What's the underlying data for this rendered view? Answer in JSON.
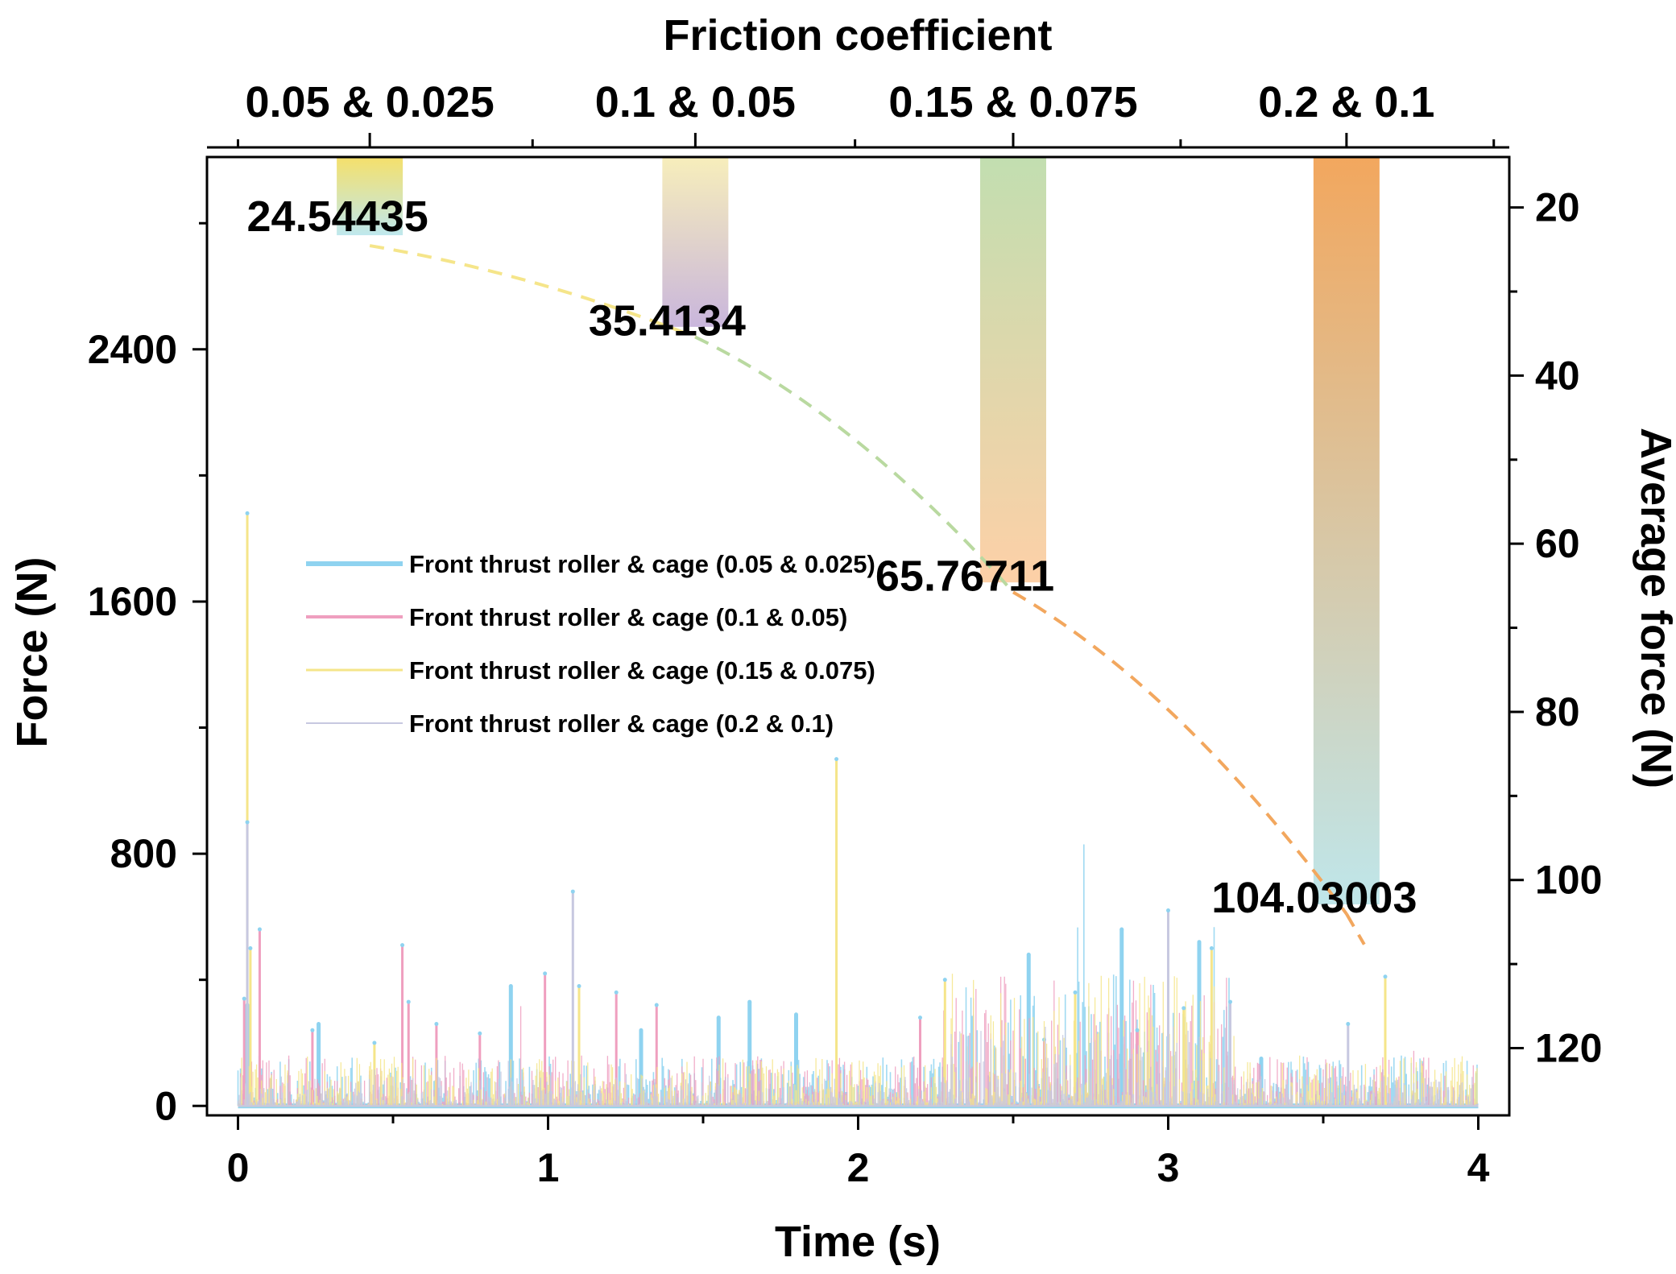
{
  "chart_data": {
    "type": "line",
    "x_axis": {
      "label": "Time (s)",
      "range": [
        -0.1,
        4.1
      ],
      "ticks": [
        "0",
        "1",
        "2",
        "3",
        "4"
      ],
      "tick_values": [
        0,
        1,
        2,
        3,
        4
      ]
    },
    "y_left_axis": {
      "label": "Force (N)",
      "range": [
        -30,
        3010
      ],
      "ticks": [
        "0",
        "800",
        "1600",
        "2400"
      ],
      "tick_values": [
        0,
        800,
        1600,
        2400
      ]
    },
    "y_right_axis": {
      "label": "Average force (N)",
      "range": [
        14,
        128
      ],
      "inverted": true,
      "ticks": [
        "20",
        "40",
        "60",
        "80",
        "100",
        "120"
      ],
      "tick_values": [
        20,
        40,
        60,
        80,
        100,
        120
      ]
    },
    "top_axis": {
      "label": "Friction coefficient",
      "categories": [
        "0.05 & 0.025",
        "0.1 & 0.05",
        "0.15 & 0.075",
        "0.2 & 0.1"
      ],
      "category_times": [
        0.425,
        1.475,
        2.5,
        3.575
      ]
    },
    "legend": {
      "placement": "center-left",
      "entries": [
        {
          "label": "Front thrust roller & cage (0.05 & 0.025)",
          "color": "#8fd3f0",
          "width": 6
        },
        {
          "label": "Front thrust roller & cage (0.1 & 0.05)",
          "color": "#ef9fbf",
          "width": 4
        },
        {
          "label": "Front thrust roller & cage (0.15 & 0.075)",
          "color": "#f5e58a",
          "width": 3
        },
        {
          "label": "Front thrust roller & cage (0.2 & 0.1)",
          "color": "#c7c8e0",
          "width": 2
        }
      ]
    },
    "series": [
      {
        "name": "Front thrust roller & cage (0.05 & 0.025)",
        "color": "#8fd3f0",
        "peaks": [
          [
            0.03,
            320
          ],
          [
            0.26,
            260
          ],
          [
            0.88,
            380
          ],
          [
            1.3,
            240
          ],
          [
            1.55,
            280
          ],
          [
            1.65,
            330
          ],
          [
            1.8,
            290
          ],
          [
            2.55,
            480
          ],
          [
            2.85,
            560
          ],
          [
            3.1,
            520
          ],
          [
            3.3,
            150
          ]
        ]
      },
      {
        "name": "Front thrust roller & cage (0.1 & 0.05)",
        "color": "#ef9fbf",
        "peaks": [
          [
            0.02,
            340
          ],
          [
            0.07,
            560
          ],
          [
            0.24,
            240
          ],
          [
            0.53,
            510
          ],
          [
            0.55,
            330
          ],
          [
            0.64,
            260
          ],
          [
            0.78,
            230
          ],
          [
            0.99,
            420
          ],
          [
            1.22,
            360
          ],
          [
            1.35,
            320
          ],
          [
            2.2,
            280
          ],
          [
            2.6,
            210
          ],
          [
            2.9,
            240
          ]
        ]
      },
      {
        "name": "Front thrust roller & cage (0.15 & 0.075)",
        "color": "#f5e58a",
        "peaks": [
          [
            0.03,
            1880
          ],
          [
            0.04,
            500
          ],
          [
            0.44,
            200
          ],
          [
            1.1,
            380
          ],
          [
            1.93,
            1100
          ],
          [
            2.28,
            400
          ],
          [
            2.7,
            360
          ],
          [
            3.05,
            310
          ],
          [
            3.14,
            500
          ],
          [
            3.7,
            410
          ]
        ]
      },
      {
        "name": "Front thrust roller & cage (0.2 & 0.1)",
        "color": "#c7c8e0",
        "peaks": [
          [
            0.03,
            900
          ],
          [
            1.08,
            680
          ],
          [
            3.0,
            620
          ],
          [
            3.2,
            330
          ],
          [
            3.58,
            260
          ]
        ]
      }
    ],
    "average_force": {
      "points": [
        {
          "x": 0.425,
          "value": 24.54435,
          "label": "24.54435"
        },
        {
          "x": 1.475,
          "value": 35.4134,
          "label": "35.4134"
        },
        {
          "x": 2.5,
          "value": 65.76711,
          "label": "65.76711"
        },
        {
          "x": 3.575,
          "value": 104.03003,
          "label": "104.03003"
        }
      ]
    },
    "bands": [
      {
        "x": 0.425,
        "top_value": 14,
        "bottom_value": 23.3,
        "color_top": "#f5e06b",
        "color_bottom": "#bfe8ee"
      },
      {
        "x": 1.475,
        "top_value": 14,
        "bottom_value": 34.2,
        "color_top": "#f7eebb",
        "color_bottom": "#c9b6dc"
      },
      {
        "x": 2.5,
        "top_value": 14,
        "bottom_value": 64.6,
        "color_top": "#c2deb0",
        "color_bottom": "#fdd0a7"
      },
      {
        "x": 3.575,
        "top_value": 14,
        "bottom_value": 102.9,
        "color_top": "#f2a75e",
        "color_bottom": "#bfe6ea"
      }
    ]
  }
}
